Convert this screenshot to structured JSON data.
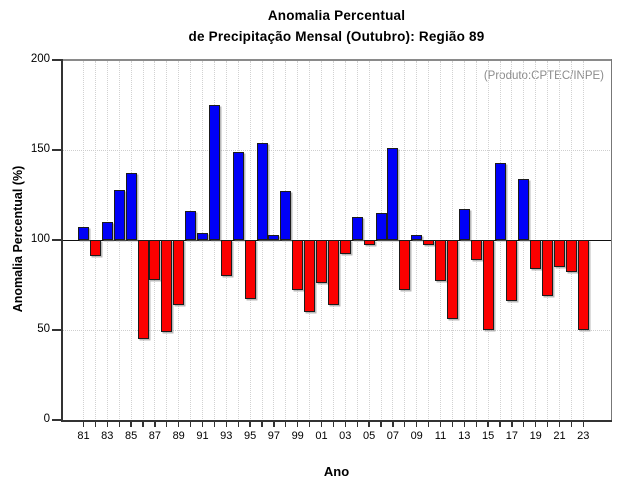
{
  "title": {
    "line1": "Anomalia Percentual",
    "line2": "de Precipitação Mensal (Outubro): Região 89"
  },
  "annotation": "(Produto:CPTEC/INPE)",
  "chart_data": {
    "type": "bar",
    "title": "Anomalia Percentual de Precipitação Mensal (Outubro): Região 89",
    "xlabel": "Ano",
    "ylabel": "Anomalia Percentual (%)",
    "ylim": [
      0,
      200
    ],
    "yticks": [
      0,
      50,
      100,
      150,
      200
    ],
    "baseline": 100,
    "grid": "dotted, vertical line per year, horizontal at 50 and 150",
    "legend_position": "none",
    "x_tick_labels": [
      "81",
      "83",
      "85",
      "87",
      "89",
      "91",
      "93",
      "95",
      "97",
      "99",
      "01",
      "03",
      "05",
      "07",
      "09",
      "11",
      "13",
      "15",
      "17",
      "19",
      "21",
      "23"
    ],
    "years": [
      1981,
      1982,
      1983,
      1984,
      1985,
      1986,
      1987,
      1988,
      1989,
      1990,
      1991,
      1992,
      1993,
      1994,
      1995,
      1996,
      1997,
      1998,
      1999,
      2000,
      2001,
      2002,
      2003,
      2004,
      2005,
      2006,
      2007,
      2008,
      2009,
      2010,
      2011,
      2012,
      2013,
      2014,
      2015,
      2016,
      2017,
      2018,
      2019,
      2020,
      2021,
      2022,
      2023
    ],
    "values": [
      107,
      91,
      110,
      128,
      137,
      45,
      78,
      49,
      64,
      116,
      104,
      175,
      80,
      149,
      67,
      154,
      103,
      127,
      72,
      60,
      76,
      64,
      92,
      113,
      97,
      115,
      151,
      72,
      103,
      97,
      77,
      56,
      117,
      89,
      50,
      143,
      66,
      134,
      84,
      69,
      85,
      82,
      50
    ],
    "colors": {
      "bar_above_baseline": "#0000f8",
      "bar_below_baseline": "#fb0000",
      "bar_border": "#1c1c1c",
      "gridline": "#d2d2d2",
      "axis": "#333333",
      "annotation_text": "#8c8c8c"
    }
  }
}
